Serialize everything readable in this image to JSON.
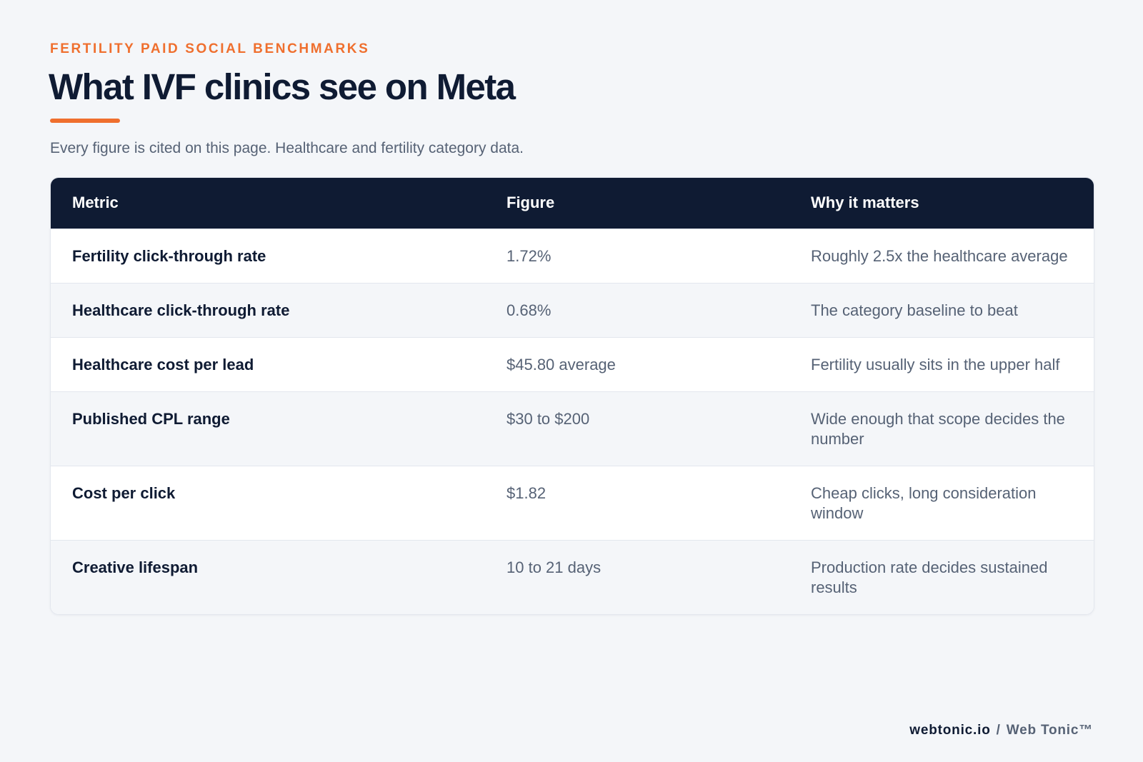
{
  "header": {
    "eyebrow": "FERTILITY PAID SOCIAL BENCHMARKS",
    "title": "What IVF clinics see on Meta",
    "subtitle": "Every figure is cited on this page. Healthcare and fertility category data."
  },
  "table": {
    "columns": [
      "Metric",
      "Figure",
      "Why it matters"
    ],
    "rows": [
      [
        "Fertility click-through rate",
        "1.72%",
        "Roughly 2.5x the healthcare average"
      ],
      [
        "Healthcare click-through rate",
        "0.68%",
        "The category baseline to beat"
      ],
      [
        "Healthcare cost per lead",
        "$45.80 average",
        "Fertility usually sits in the upper half"
      ],
      [
        "Published CPL range",
        "$30 to $200",
        "Wide enough that scope decides the number"
      ],
      [
        "Cost per click",
        "$1.82",
        "Cheap clicks, long consideration window"
      ],
      [
        "Creative lifespan",
        "10 to 21 days",
        "Production rate decides sustained results"
      ]
    ]
  },
  "footer": {
    "brand": "webtonic.io",
    "separator": "/",
    "name": "Web Tonic™"
  }
}
